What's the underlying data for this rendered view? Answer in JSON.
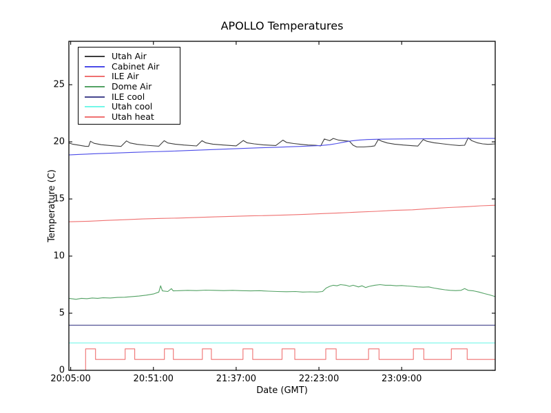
{
  "title": "APOLLO Temperatures",
  "chart_data": {
    "type": "line",
    "title": "APOLLO Temperatures",
    "xlabel": "Date (GMT)",
    "ylabel": "Temperature (C)",
    "x_unit": "minutes since 20:05:00 GMT",
    "xlim_minutes": [
      -1,
      236
    ],
    "ylim": [
      0,
      28.8
    ],
    "x_tick_labels": [
      "20:05:00",
      "20:51:00",
      "21:37:00",
      "22:23:00",
      "23:09:00"
    ],
    "x_tick_minutes": [
      0,
      46,
      92,
      138,
      184
    ],
    "y_tick_labels": [
      "0",
      "5",
      "10",
      "15",
      "20",
      "25"
    ],
    "y_tick_values": [
      0,
      5,
      10,
      15,
      20,
      25
    ],
    "grid": false,
    "legend_position": "upper left",
    "axis_color": "#000000",
    "series": [
      {
        "name": "Utah Air",
        "color": "#3c3c3c",
        "points": [
          [
            -1,
            19.9
          ],
          [
            1,
            19.8
          ],
          [
            4,
            19.72
          ],
          [
            8,
            19.62
          ],
          [
            10,
            19.6
          ],
          [
            11,
            20.05
          ],
          [
            13,
            19.87
          ],
          [
            17,
            19.75
          ],
          [
            22,
            19.68
          ],
          [
            28,
            19.6
          ],
          [
            31,
            20.08
          ],
          [
            33,
            19.9
          ],
          [
            37,
            19.78
          ],
          [
            42,
            19.7
          ],
          [
            49,
            19.62
          ],
          [
            52,
            20.1
          ],
          [
            54,
            19.9
          ],
          [
            58,
            19.8
          ],
          [
            63,
            19.72
          ],
          [
            70,
            19.64
          ],
          [
            73,
            20.1
          ],
          [
            75,
            19.92
          ],
          [
            79,
            19.8
          ],
          [
            85,
            19.72
          ],
          [
            92,
            19.65
          ],
          [
            96,
            20.12
          ],
          [
            98,
            19.92
          ],
          [
            102,
            19.82
          ],
          [
            107,
            19.74
          ],
          [
            114,
            19.68
          ],
          [
            118,
            20.15
          ],
          [
            120,
            19.95
          ],
          [
            124,
            19.85
          ],
          [
            128,
            19.78
          ],
          [
            132,
            19.72
          ],
          [
            136,
            19.7
          ],
          [
            139,
            19.65
          ],
          [
            141,
            20.25
          ],
          [
            144,
            20.1
          ],
          [
            146,
            20.3
          ],
          [
            149,
            20.15
          ],
          [
            152,
            20.1
          ],
          [
            155,
            20.05
          ],
          [
            157,
            19.7
          ],
          [
            159,
            19.55
          ],
          [
            163,
            19.55
          ],
          [
            167,
            19.6
          ],
          [
            169,
            19.65
          ],
          [
            171,
            20.2
          ],
          [
            173,
            20.05
          ],
          [
            176,
            19.9
          ],
          [
            180,
            19.8
          ],
          [
            185,
            19.72
          ],
          [
            190,
            19.66
          ],
          [
            193,
            19.63
          ],
          [
            196,
            20.2
          ],
          [
            198,
            20.05
          ],
          [
            202,
            19.92
          ],
          [
            207,
            19.82
          ],
          [
            212,
            19.73
          ],
          [
            216,
            19.68
          ],
          [
            219,
            19.7
          ],
          [
            221,
            20.35
          ],
          [
            223,
            20.1
          ],
          [
            226,
            19.92
          ],
          [
            229,
            19.82
          ],
          [
            232,
            19.78
          ],
          [
            234,
            19.8
          ],
          [
            236,
            19.82
          ]
        ]
      },
      {
        "name": "Cabinet Air",
        "color": "#4a4ae8",
        "points": [
          [
            -1,
            18.85
          ],
          [
            5,
            18.9
          ],
          [
            15,
            18.97
          ],
          [
            25,
            19.02
          ],
          [
            35,
            19.08
          ],
          [
            45,
            19.13
          ],
          [
            55,
            19.18
          ],
          [
            65,
            19.24
          ],
          [
            75,
            19.3
          ],
          [
            85,
            19.36
          ],
          [
            95,
            19.42
          ],
          [
            105,
            19.48
          ],
          [
            115,
            19.53
          ],
          [
            122,
            19.57
          ],
          [
            128,
            19.6
          ],
          [
            134,
            19.64
          ],
          [
            139,
            19.68
          ],
          [
            144,
            19.75
          ],
          [
            148,
            19.85
          ],
          [
            152,
            19.98
          ],
          [
            156,
            20.08
          ],
          [
            160,
            20.15
          ],
          [
            165,
            20.2
          ],
          [
            172,
            20.23
          ],
          [
            180,
            20.25
          ],
          [
            190,
            20.26
          ],
          [
            200,
            20.27
          ],
          [
            210,
            20.28
          ],
          [
            220,
            20.3
          ],
          [
            228,
            20.3
          ],
          [
            236,
            20.3
          ]
        ]
      },
      {
        "name": "ILE Air",
        "color": "#ef7070",
        "points": [
          [
            -1,
            13.0
          ],
          [
            10,
            13.05
          ],
          [
            20,
            13.12
          ],
          [
            30,
            13.18
          ],
          [
            40,
            13.25
          ],
          [
            50,
            13.3
          ],
          [
            60,
            13.33
          ],
          [
            70,
            13.38
          ],
          [
            80,
            13.43
          ],
          [
            90,
            13.48
          ],
          [
            100,
            13.52
          ],
          [
            110,
            13.55
          ],
          [
            120,
            13.6
          ],
          [
            130,
            13.65
          ],
          [
            140,
            13.72
          ],
          [
            150,
            13.78
          ],
          [
            160,
            13.85
          ],
          [
            170,
            13.92
          ],
          [
            180,
            14.0
          ],
          [
            190,
            14.05
          ],
          [
            200,
            14.15
          ],
          [
            210,
            14.25
          ],
          [
            220,
            14.32
          ],
          [
            228,
            14.4
          ],
          [
            236,
            14.45
          ]
        ]
      },
      {
        "name": "Dome Air",
        "color": "#52a163",
        "points": [
          [
            -1,
            6.3
          ],
          [
            3,
            6.22
          ],
          [
            6,
            6.3
          ],
          [
            9,
            6.27
          ],
          [
            12,
            6.33
          ],
          [
            15,
            6.3
          ],
          [
            18,
            6.35
          ],
          [
            22,
            6.33
          ],
          [
            26,
            6.38
          ],
          [
            30,
            6.4
          ],
          [
            34,
            6.45
          ],
          [
            38,
            6.5
          ],
          [
            42,
            6.58
          ],
          [
            46,
            6.68
          ],
          [
            49,
            6.85
          ],
          [
            50,
            7.4
          ],
          [
            51,
            6.95
          ],
          [
            54,
            6.9
          ],
          [
            56,
            7.15
          ],
          [
            57,
            6.95
          ],
          [
            60,
            6.97
          ],
          [
            65,
            7.0
          ],
          [
            70,
            6.98
          ],
          [
            75,
            7.02
          ],
          [
            80,
            7.0
          ],
          [
            85,
            6.98
          ],
          [
            90,
            7.0
          ],
          [
            95,
            6.97
          ],
          [
            100,
            6.95
          ],
          [
            105,
            6.97
          ],
          [
            110,
            6.93
          ],
          [
            115,
            6.9
          ],
          [
            120,
            6.88
          ],
          [
            125,
            6.9
          ],
          [
            129,
            6.85
          ],
          [
            133,
            6.87
          ],
          [
            137,
            6.85
          ],
          [
            140,
            6.9
          ],
          [
            142,
            7.2
          ],
          [
            144,
            7.35
          ],
          [
            146,
            7.45
          ],
          [
            148,
            7.4
          ],
          [
            150,
            7.5
          ],
          [
            153,
            7.45
          ],
          [
            155,
            7.35
          ],
          [
            157,
            7.45
          ],
          [
            160,
            7.3
          ],
          [
            162,
            7.4
          ],
          [
            164,
            7.25
          ],
          [
            166,
            7.35
          ],
          [
            169,
            7.45
          ],
          [
            172,
            7.5
          ],
          [
            175,
            7.45
          ],
          [
            178,
            7.45
          ],
          [
            181,
            7.4
          ],
          [
            184,
            7.42
          ],
          [
            187,
            7.38
          ],
          [
            190,
            7.35
          ],
          [
            193,
            7.3
          ],
          [
            196,
            7.28
          ],
          [
            199,
            7.3
          ],
          [
            202,
            7.2
          ],
          [
            205,
            7.12
          ],
          [
            208,
            7.05
          ],
          [
            211,
            7.0
          ],
          [
            214,
            6.98
          ],
          [
            217,
            7.0
          ],
          [
            219,
            7.15
          ],
          [
            221,
            7.0
          ],
          [
            224,
            6.95
          ],
          [
            227,
            6.85
          ],
          [
            230,
            6.72
          ],
          [
            233,
            6.6
          ],
          [
            236,
            6.45
          ]
        ]
      },
      {
        "name": "ILE cool",
        "color": "#45458d",
        "points": [
          [
            -1,
            3.95
          ],
          [
            236,
            3.95
          ]
        ]
      },
      {
        "name": "Utah cool",
        "color": "#72f7e8",
        "points": [
          [
            -1,
            2.4
          ],
          [
            236,
            2.4
          ]
        ]
      },
      {
        "name": "Utah heat",
        "color": "#ef7070",
        "points": [
          [
            -1,
            0
          ],
          [
            8.3,
            0
          ],
          [
            8.3,
            1.88
          ],
          [
            13.8,
            1.88
          ],
          [
            13.8,
            0.95
          ],
          [
            30.3,
            0.95
          ],
          [
            30.3,
            1.88
          ],
          [
            35.6,
            1.88
          ],
          [
            35.6,
            0.95
          ],
          [
            52.1,
            0.95
          ],
          [
            52.1,
            1.88
          ],
          [
            57.1,
            1.88
          ],
          [
            57.1,
            0.95
          ],
          [
            73.2,
            0.95
          ],
          [
            73.2,
            1.88
          ],
          [
            78.2,
            1.88
          ],
          [
            78.2,
            0.95
          ],
          [
            95.8,
            0.95
          ],
          [
            95.8,
            1.88
          ],
          [
            101.2,
            1.88
          ],
          [
            101.2,
            0.95
          ],
          [
            117.5,
            0.95
          ],
          [
            117.5,
            1.88
          ],
          [
            124.6,
            1.88
          ],
          [
            124.6,
            0.95
          ],
          [
            141.8,
            0.95
          ],
          [
            141.8,
            1.88
          ],
          [
            147.6,
            1.88
          ],
          [
            147.6,
            0.95
          ],
          [
            165.6,
            0.95
          ],
          [
            165.6,
            1.88
          ],
          [
            171.4,
            1.88
          ],
          [
            171.4,
            0.95
          ],
          [
            190.5,
            0.95
          ],
          [
            190.5,
            1.88
          ],
          [
            196.3,
            1.88
          ],
          [
            196.3,
            0.95
          ],
          [
            211.6,
            0.95
          ],
          [
            211.6,
            1.88
          ],
          [
            220.4,
            1.88
          ],
          [
            220.4,
            0.95
          ],
          [
            236,
            0.95
          ]
        ]
      }
    ]
  }
}
